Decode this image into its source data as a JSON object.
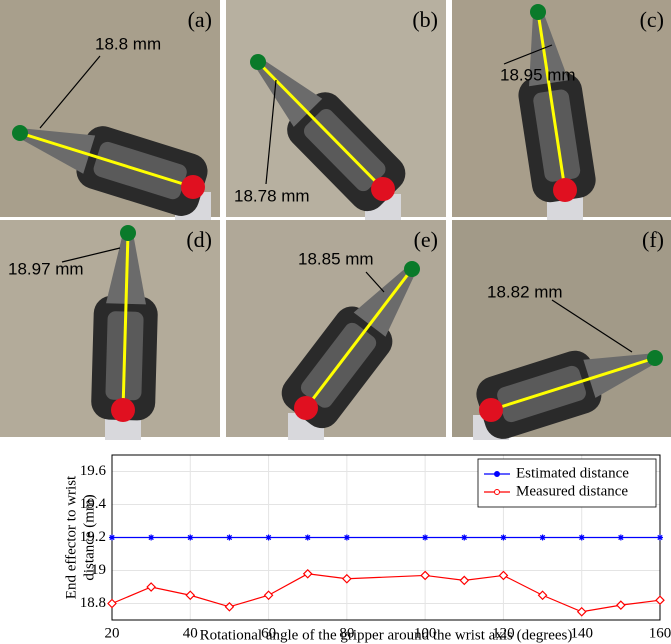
{
  "panels": [
    {
      "letter": "(a)",
      "measurement": "18.8 mm"
    },
    {
      "letter": "(b)",
      "measurement": "18.78 mm"
    },
    {
      "letter": "(c)",
      "measurement": "18.95 mm"
    },
    {
      "letter": "(d)",
      "measurement": "18.97 mm"
    },
    {
      "letter": "(e)",
      "measurement": "18.85 mm"
    },
    {
      "letter": "(f)",
      "measurement": "18.82 mm"
    }
  ],
  "chart_data": {
    "type": "line",
    "x_label": "Rotational angle of the gripper around the wrist axis (degrees)",
    "y_label": [
      "End effector to wrist",
      "distance (mm)"
    ],
    "x": [
      20,
      30,
      40,
      50,
      60,
      70,
      80,
      100,
      110,
      120,
      130,
      140,
      150,
      160
    ],
    "series": [
      {
        "name": "Estimated distance",
        "color": "#0000ff",
        "marker": "star",
        "values": [
          19.2,
          19.2,
          19.2,
          19.2,
          19.2,
          19.2,
          19.2,
          19.2,
          19.2,
          19.2,
          19.2,
          19.2,
          19.2,
          19.2
        ]
      },
      {
        "name": "Measured distance",
        "color": "#ff0000",
        "marker": "diamond",
        "values": [
          18.8,
          18.9,
          18.85,
          18.78,
          18.85,
          18.98,
          18.95,
          18.97,
          18.94,
          18.97,
          18.85,
          18.75,
          18.79,
          18.82
        ]
      }
    ],
    "xlim": [
      20,
      160
    ],
    "xticks": [
      20,
      40,
      60,
      80,
      100,
      120,
      140,
      160
    ],
    "ylim": [
      18.7,
      19.7
    ],
    "yticks": [
      18.8,
      19,
      19.2,
      19.4,
      19.6
    ],
    "grid": true,
    "legend": "upper right"
  }
}
